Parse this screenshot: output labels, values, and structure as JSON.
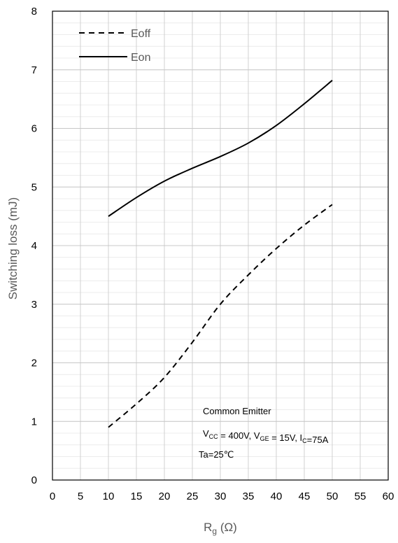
{
  "chart_data": {
    "type": "line",
    "title": "",
    "xlabel": {
      "main": "R",
      "sub": "g",
      "unit": " (Ω)"
    },
    "ylabel": "Switching loss (mJ)",
    "xlim": [
      0,
      60
    ],
    "ylim": [
      0,
      8
    ],
    "xticks": [
      0,
      5,
      10,
      15,
      20,
      25,
      30,
      35,
      40,
      45,
      50,
      55,
      60
    ],
    "yticks": [
      0,
      1,
      2,
      3,
      4,
      5,
      6,
      7,
      8
    ],
    "grid": {
      "major": true,
      "minor": true
    },
    "legend": "top-left",
    "series": [
      {
        "name": "Eoff",
        "style": "dashed",
        "color": "#000000",
        "x": [
          10,
          15,
          20,
          25,
          30,
          35,
          40,
          45,
          50
        ],
        "y": [
          0.9,
          1.3,
          1.75,
          2.35,
          3.0,
          3.5,
          3.95,
          4.35,
          4.7
        ]
      },
      {
        "name": "Eon",
        "style": "solid",
        "color": "#000000",
        "x": [
          10,
          15,
          20,
          25,
          30,
          35,
          40,
          45,
          50
        ],
        "y": [
          4.5,
          4.82,
          5.1,
          5.32,
          5.52,
          5.75,
          6.05,
          6.42,
          6.82
        ]
      }
    ],
    "annotations": {
      "line1": "Common Emitter",
      "line2": [
        {
          "t": "V",
          "sub": "CC"
        },
        {
          "t": " = 400V, V",
          "sub": "GE"
        },
        {
          "t": " = 15V, I",
          "sub": "C"
        },
        {
          "t": "=75A",
          "sub": ""
        }
      ],
      "line3": "Ta=25℃"
    }
  }
}
